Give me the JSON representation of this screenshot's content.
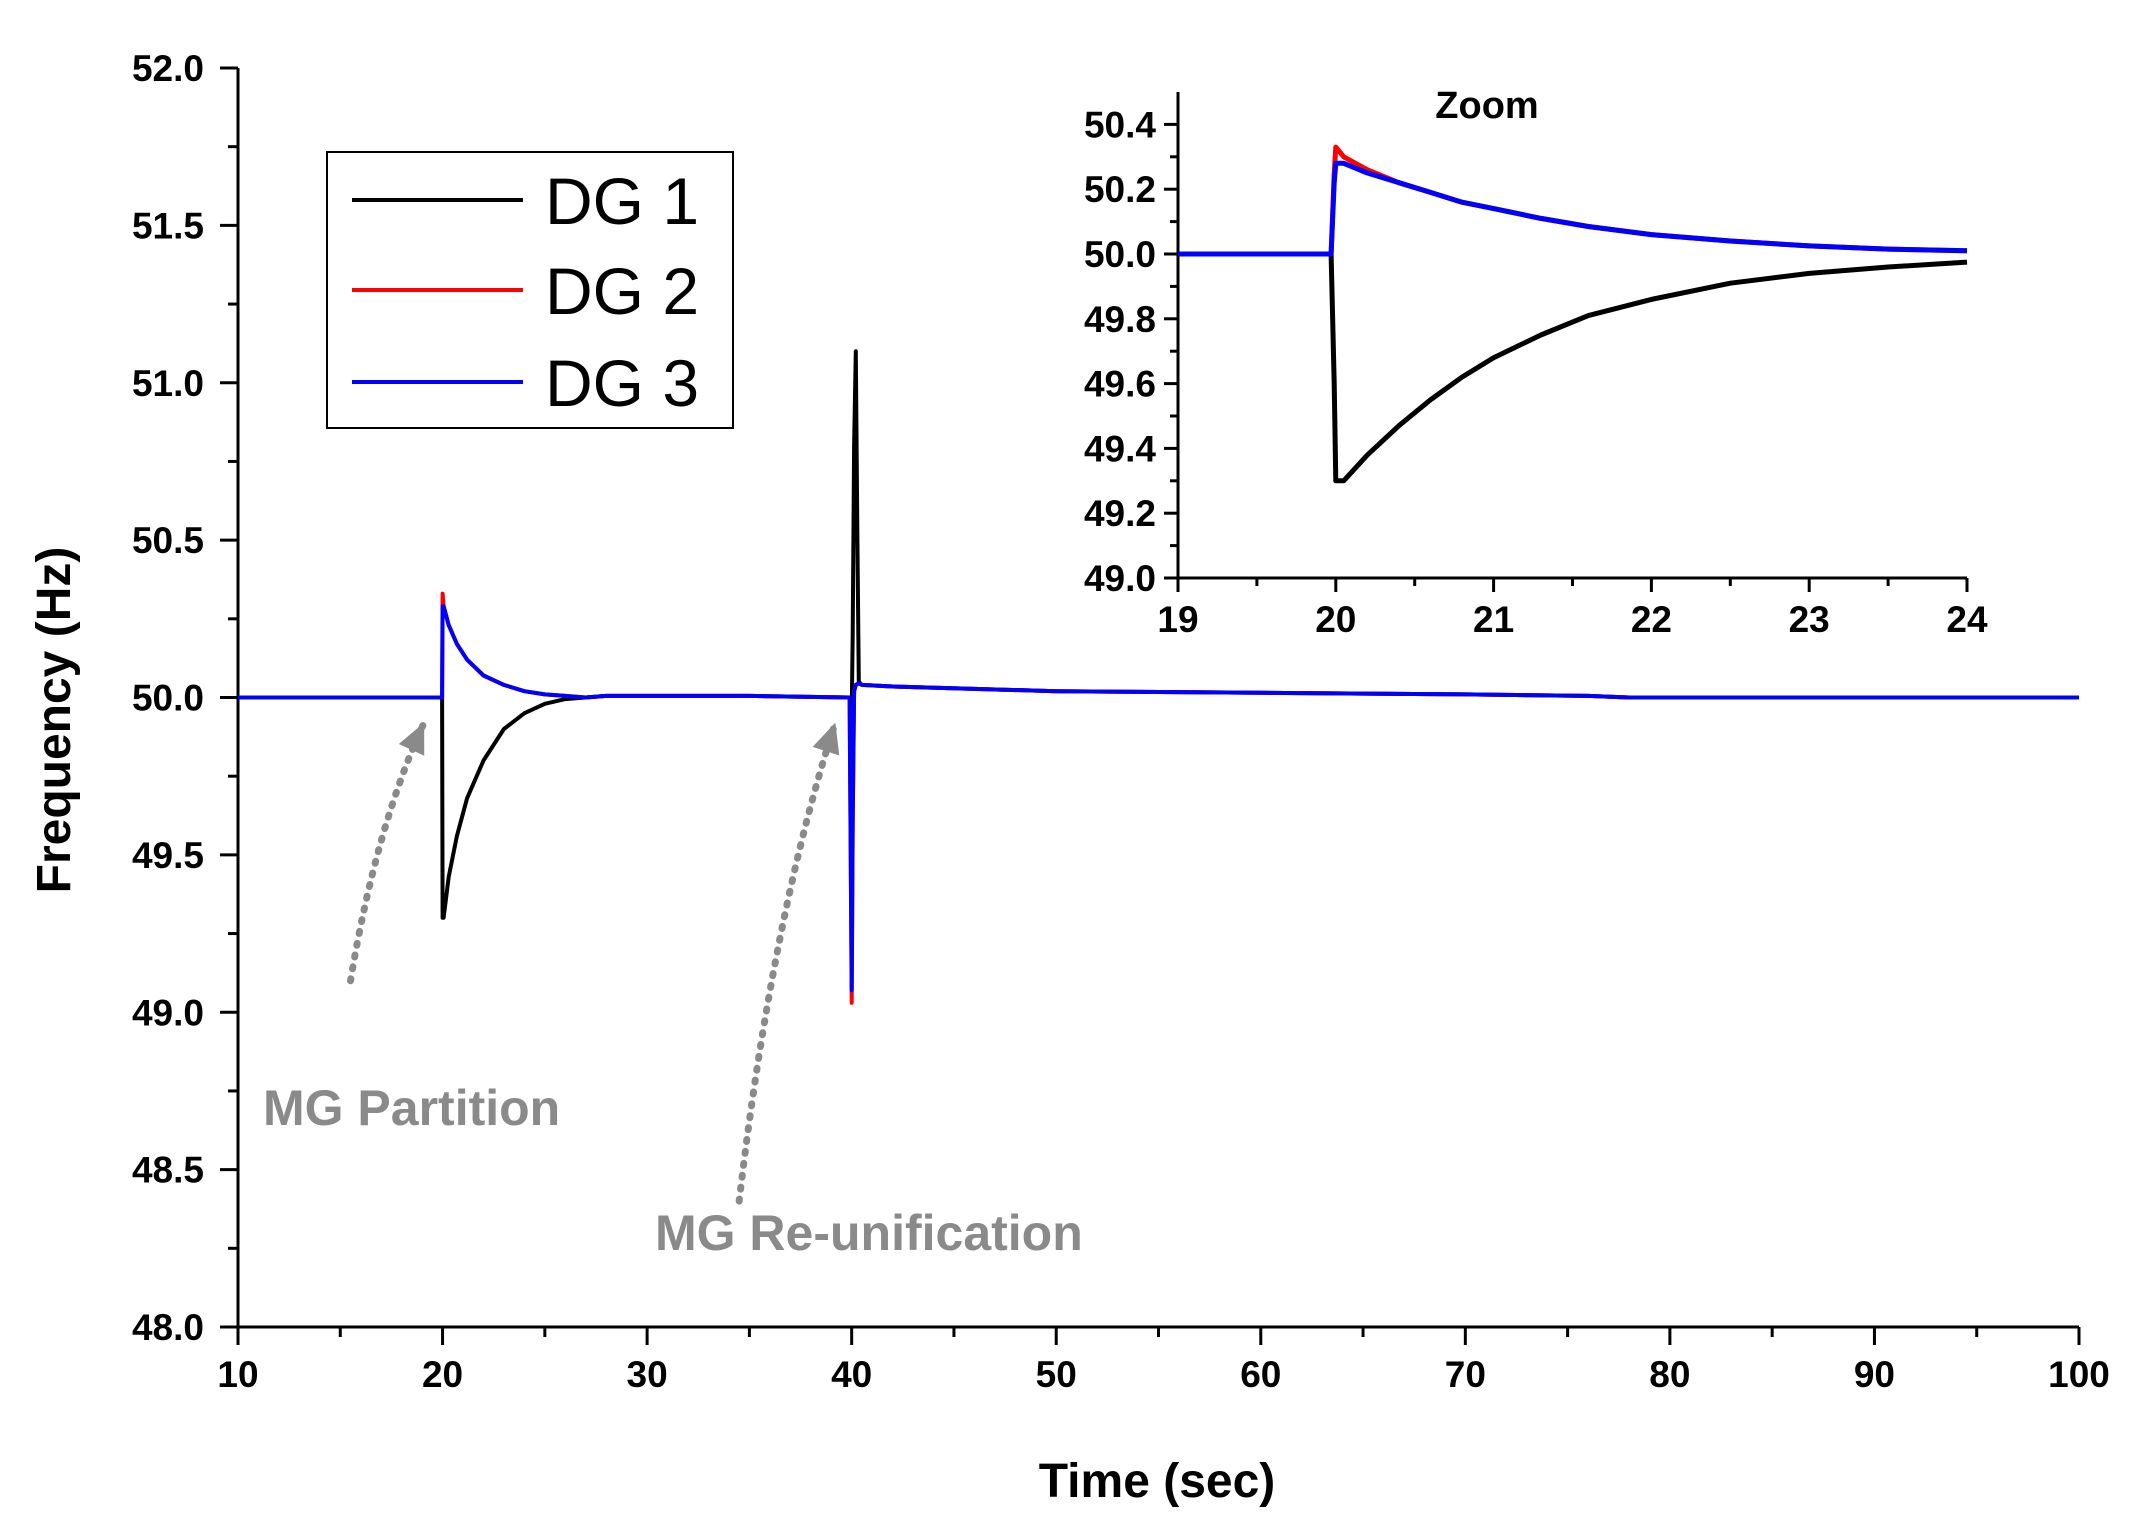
{
  "chart_data": [
    {
      "type": "line",
      "name": "main",
      "xlabel": "Time (sec)",
      "ylabel": "Frequency (Hz)",
      "xlim": [
        10,
        100
      ],
      "ylim": [
        48.0,
        52.0
      ],
      "xticks": [
        10,
        20,
        30,
        40,
        50,
        60,
        70,
        80,
        90,
        100
      ],
      "xtick_labels": [
        "10",
        "20",
        "30",
        "40",
        "50",
        "60",
        "70",
        "80",
        "90",
        "100"
      ],
      "yticks": [
        48.0,
        48.5,
        49.0,
        49.5,
        50.0,
        50.5,
        51.0,
        51.5,
        52.0
      ],
      "ytick_labels": [
        "48.0",
        "48.5",
        "49.0",
        "49.5",
        "50.0",
        "50.5",
        "51.0",
        "51.5",
        "52.0"
      ],
      "grid": false,
      "legend_position": "top-left",
      "series": [
        {
          "name": "DG 1",
          "color": "#000000",
          "x": [
            10,
            19.98,
            20.0,
            20.05,
            20.3,
            20.7,
            21.2,
            22,
            23,
            24,
            25,
            26,
            27,
            28,
            30,
            35,
            39.9,
            40.0,
            40.05,
            40.12,
            40.2,
            40.28,
            40.35,
            40.5,
            42,
            50,
            60,
            70,
            76,
            78,
            100
          ],
          "y": [
            50.0,
            50.0,
            49.3,
            49.3,
            49.43,
            49.56,
            49.68,
            49.8,
            49.9,
            49.95,
            49.98,
            49.995,
            50.0,
            50.005,
            50.005,
            50.005,
            50.0,
            49.95,
            50.2,
            50.8,
            51.1,
            50.5,
            50.05,
            50.04,
            50.035,
            50.02,
            50.015,
            50.01,
            50.005,
            50.0,
            50.0
          ]
        },
        {
          "name": "DG 2",
          "color": "#ff0000",
          "x": [
            10,
            19.98,
            20.0,
            20.05,
            20.3,
            20.7,
            21.2,
            22,
            23,
            24,
            25,
            26,
            27,
            28,
            30,
            35,
            39.9,
            40.0,
            40.05,
            40.12,
            40.2,
            40.35,
            40.5,
            42,
            50,
            60,
            70,
            76,
            78,
            100
          ],
          "y": [
            50.0,
            50.0,
            50.33,
            50.29,
            50.23,
            50.17,
            50.12,
            50.07,
            50.04,
            50.02,
            50.01,
            50.005,
            50.0,
            50.005,
            50.005,
            50.005,
            50.0,
            49.03,
            49.6,
            50.02,
            50.04,
            50.045,
            50.04,
            50.035,
            50.02,
            50.015,
            50.01,
            50.005,
            50.0,
            50.0
          ]
        },
        {
          "name": "DG 3",
          "color": "#0000ff",
          "x": [
            10,
            19.98,
            20.0,
            20.05,
            20.3,
            20.7,
            21.2,
            22,
            23,
            24,
            25,
            26,
            27,
            28,
            30,
            35,
            39.9,
            40.0,
            40.05,
            40.12,
            40.2,
            40.35,
            40.5,
            42,
            50,
            60,
            70,
            76,
            78,
            100
          ],
          "y": [
            50.0,
            50.0,
            50.29,
            50.29,
            50.23,
            50.17,
            50.12,
            50.07,
            50.04,
            50.02,
            50.01,
            50.005,
            50.0,
            50.005,
            50.005,
            50.005,
            50.0,
            49.07,
            49.6,
            50.02,
            50.04,
            50.045,
            50.04,
            50.035,
            50.02,
            50.015,
            50.01,
            50.005,
            50.0,
            50.0
          ]
        }
      ],
      "annotations": [
        {
          "text": "MG Partition",
          "arrow_from": [
            15.5,
            49.1
          ],
          "arrow_to": [
            19.1,
            49.92
          ]
        },
        {
          "text": "MG Re-unification",
          "arrow_from": [
            34.5,
            48.4
          ],
          "arrow_to": [
            39.2,
            49.92
          ]
        }
      ]
    },
    {
      "type": "line",
      "name": "inset",
      "title": "Zoom",
      "xlim": [
        19,
        24
      ],
      "ylim": [
        49.0,
        50.5
      ],
      "xticks": [
        19,
        20,
        21,
        22,
        23,
        24
      ],
      "xtick_labels": [
        "19",
        "20",
        "21",
        "22",
        "23",
        "24"
      ],
      "yticks": [
        49.0,
        49.2,
        49.4,
        49.6,
        49.8,
        50.0,
        50.2,
        50.4
      ],
      "ytick_labels": [
        "49.0",
        "49.2",
        "49.4",
        "49.6",
        "49.8",
        "50.0",
        "50.2",
        "50.4"
      ],
      "grid": false,
      "series": [
        {
          "name": "DG 1",
          "color": "#000000",
          "x": [
            19,
            19.97,
            19.99,
            20.0,
            20.05,
            20.2,
            20.4,
            20.6,
            20.8,
            21.0,
            21.3,
            21.6,
            22.0,
            22.5,
            23.0,
            23.5,
            24.0
          ],
          "y": [
            50.0,
            50.0,
            49.6,
            49.3,
            49.3,
            49.38,
            49.47,
            49.55,
            49.62,
            49.68,
            49.75,
            49.81,
            49.86,
            49.91,
            49.94,
            49.96,
            49.975
          ]
        },
        {
          "name": "DG 2",
          "color": "#ff0000",
          "x": [
            19,
            19.97,
            19.99,
            20.0,
            20.05,
            20.2,
            20.4,
            20.6,
            20.8,
            21.0,
            21.3,
            21.6,
            22.0,
            22.5,
            23.0,
            23.5,
            24.0
          ],
          "y": [
            50.0,
            50.0,
            50.25,
            50.33,
            50.3,
            50.26,
            50.22,
            50.19,
            50.16,
            50.14,
            50.11,
            50.085,
            50.06,
            50.04,
            50.025,
            50.015,
            50.01
          ]
        },
        {
          "name": "DG 3",
          "color": "#0000ff",
          "x": [
            19,
            19.97,
            19.99,
            20.0,
            20.05,
            20.2,
            20.4,
            20.6,
            20.8,
            21.0,
            21.3,
            21.6,
            22.0,
            22.5,
            23.0,
            23.5,
            24.0
          ],
          "y": [
            50.0,
            50.0,
            50.22,
            50.28,
            50.28,
            50.25,
            50.22,
            50.19,
            50.16,
            50.14,
            50.11,
            50.085,
            50.06,
            50.04,
            50.025,
            50.015,
            50.01
          ]
        }
      ]
    }
  ]
}
